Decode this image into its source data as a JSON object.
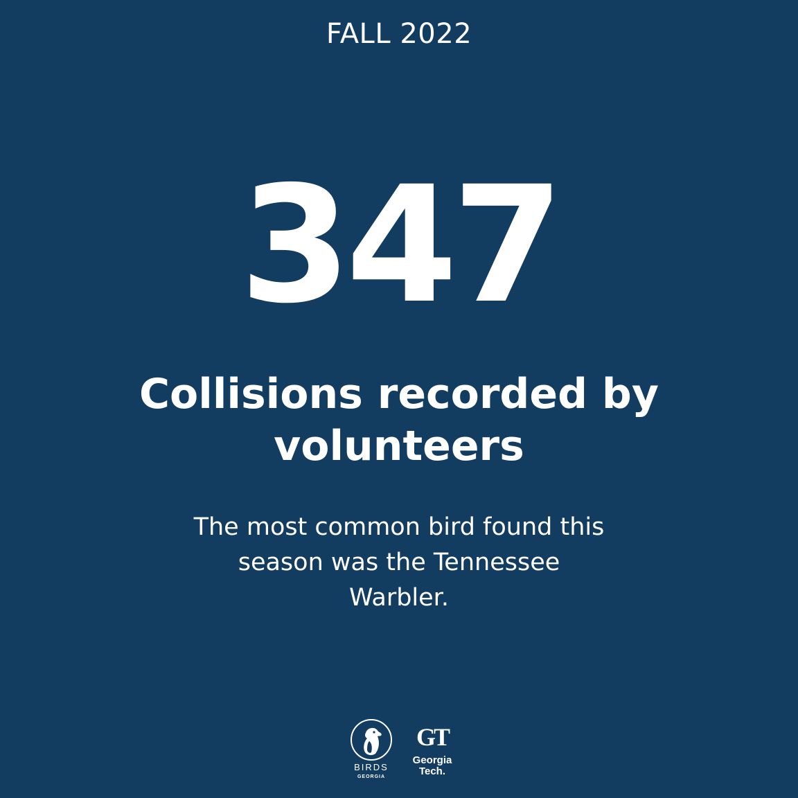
{
  "season": "FALL 2022",
  "stat": {
    "value": "347",
    "headline": "Collisions recorded by volunteers"
  },
  "description": "The most common bird found this season was the Tennessee Warbler.",
  "logos": {
    "birds_georgia": {
      "name": "BIRDS",
      "subname": "GEORGIA"
    },
    "georgia_tech": {
      "mark": "GT",
      "name_line1": "Georgia",
      "name_line2": "Tech."
    }
  },
  "colors": {
    "background": "#123c60",
    "text": "#ffffff"
  }
}
